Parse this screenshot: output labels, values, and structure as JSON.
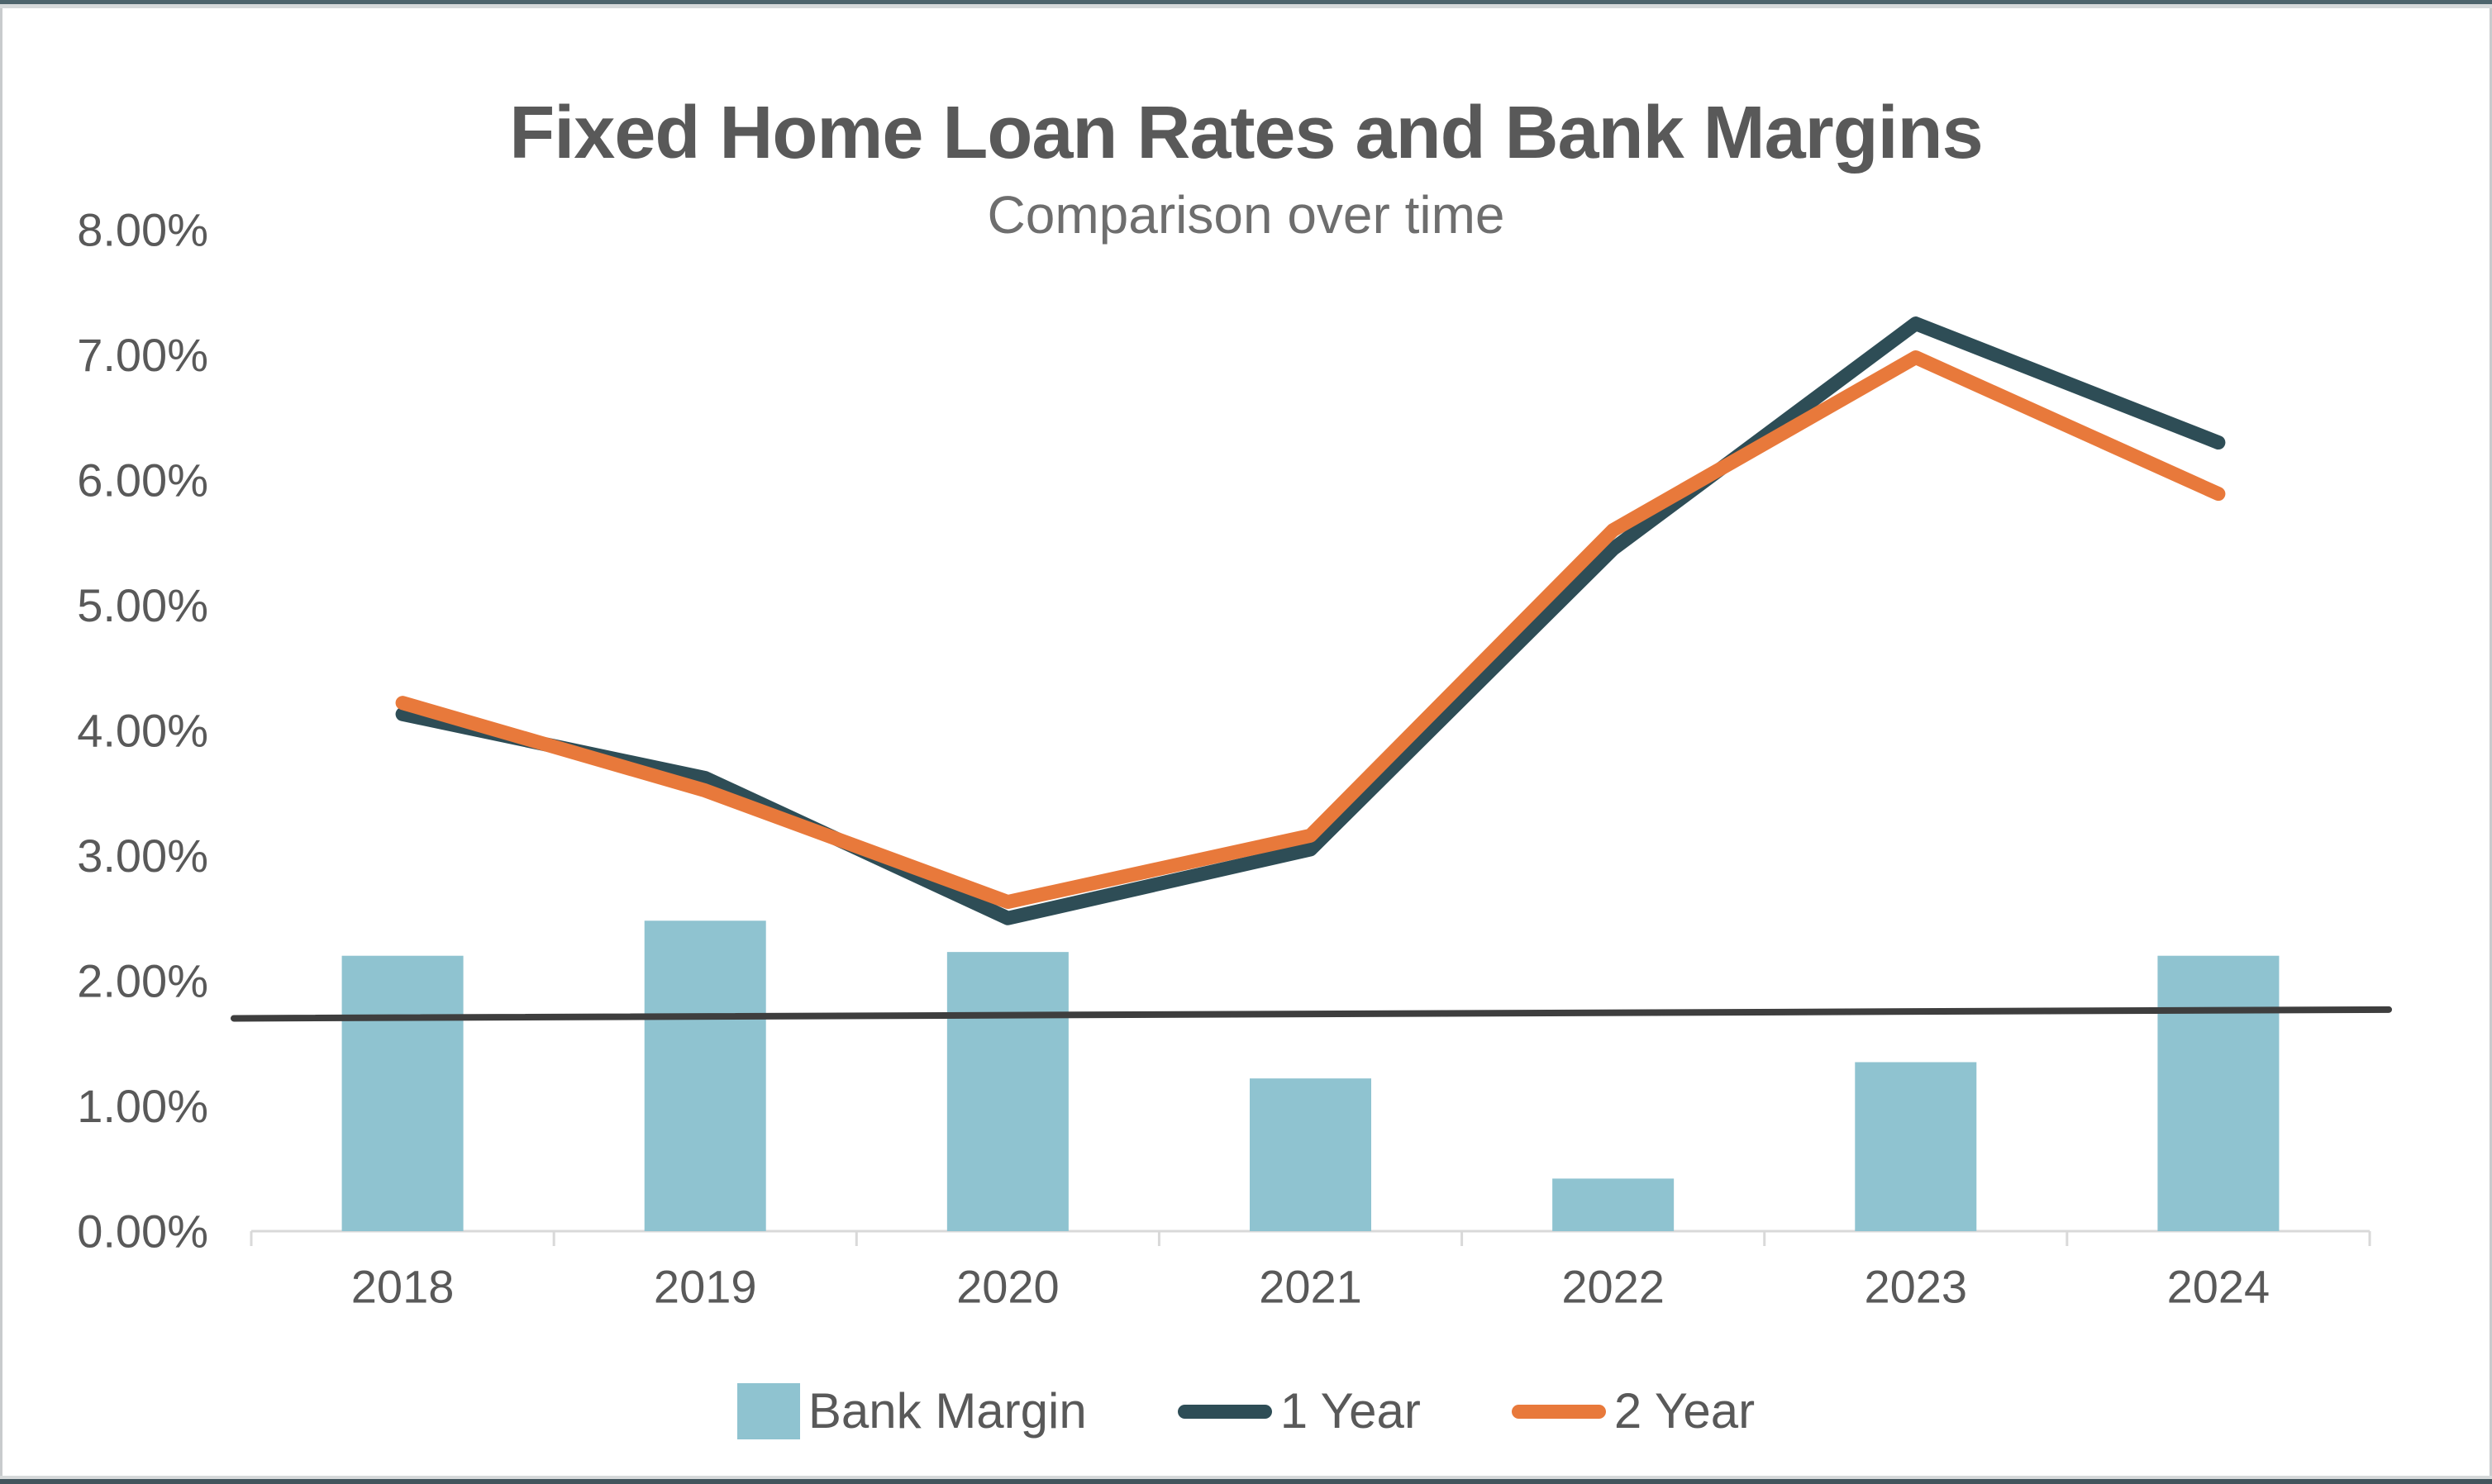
{
  "window": {
    "frame_top_color": "#4D646C",
    "frame_bottom_color": "#43555D",
    "frame_strip_color": "#D6D9DA",
    "frame_side_color": "#C8CBCD",
    "background_color": "#FFFFFF"
  },
  "header": {
    "title": "Fixed Home Loan Rates and Bank Margins",
    "subtitle": "Comparison over time",
    "title_color": "#595959",
    "subtitle_color": "#6E6E6E"
  },
  "chart_data": {
    "type": "bar",
    "combo": "bar + line",
    "title": "Fixed Home Loan Rates and Bank Margins",
    "subtitle": "Comparison over time",
    "categories": [
      "2018",
      "2019",
      "2020",
      "2021",
      "2022",
      "2023",
      "2024"
    ],
    "series": [
      {
        "name": "Bank Margin",
        "type": "bar",
        "color": "#8FC3D0",
        "values": [
          2.2,
          2.48,
          2.23,
          1.22,
          0.42,
          1.35,
          2.2
        ]
      },
      {
        "name": "1 Year",
        "type": "line",
        "color": "#2E4D56",
        "values": [
          4.13,
          3.62,
          2.5,
          3.05,
          5.45,
          7.25,
          6.3
        ]
      },
      {
        "name": "2 Year",
        "type": "line",
        "color": "#E8793B",
        "values": [
          4.22,
          3.52,
          2.63,
          3.16,
          5.6,
          6.98,
          5.89
        ]
      }
    ],
    "trendline": {
      "color": "#3E3E3E",
      "start_value": 1.7,
      "end_value": 1.77
    },
    "y_axis": {
      "min": 0,
      "max": 8,
      "step": 1,
      "labels": [
        "0.00%",
        "1.00%",
        "2.00%",
        "3.00%",
        "4.00%",
        "5.00%",
        "6.00%",
        "7.00%",
        "8.00%"
      ],
      "label_color": "#595959"
    },
    "x_axis": {
      "line_color": "#D9D9D9",
      "label_color": "#595959"
    },
    "grid": false,
    "legend_position": "bottom",
    "legend": [
      "Bank Margin",
      "1 Year",
      "2 Year"
    ]
  }
}
